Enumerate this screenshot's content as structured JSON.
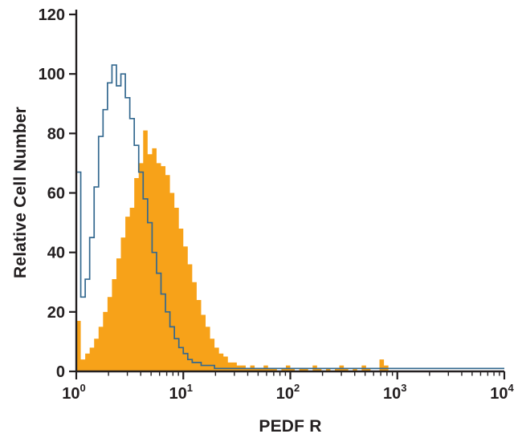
{
  "chart_data": {
    "type": "histogram",
    "title": "",
    "xlabel": "PEDF R",
    "ylabel": "Relative Cell Number",
    "x_scale": "log10",
    "xlim": [
      1,
      10000
    ],
    "ylim": [
      0,
      120
    ],
    "y_ticks": [
      0,
      20,
      40,
      60,
      80,
      100,
      120
    ],
    "x_tick_values": [
      1,
      10,
      100,
      1000,
      10000
    ],
    "x_tick_labels": [
      "10^0",
      "10^1",
      "10^2",
      "10^3",
      "10^4"
    ],
    "grid": false,
    "legend": "none",
    "bins": {
      "log10_start": 0,
      "log10_step": 0.0416667,
      "count": 96
    },
    "series": [
      {
        "name": "filled-orange-histogram",
        "style": "fill",
        "color": "#F7A219",
        "values": [
          17,
          4,
          6,
          8,
          11,
          15,
          20,
          25,
          31,
          38,
          45,
          52,
          55,
          65,
          70,
          81,
          73,
          75,
          70,
          69,
          66,
          60,
          55,
          48,
          42,
          36,
          30,
          24,
          19,
          15,
          11,
          8,
          6,
          5,
          3,
          3,
          2,
          2,
          1,
          2,
          1,
          1,
          2,
          1,
          1,
          0,
          1,
          2,
          1,
          0,
          1,
          1,
          0,
          2,
          1,
          0,
          1,
          0,
          1,
          2,
          1,
          0,
          1,
          0,
          2,
          1,
          0,
          0,
          4,
          2,
          0,
          0,
          0,
          0,
          0,
          0,
          0,
          0,
          0,
          0,
          0,
          0,
          0,
          0,
          0,
          0,
          0,
          0,
          0,
          0,
          0,
          0,
          0,
          0,
          0,
          0
        ]
      },
      {
        "name": "open-blue-histogram",
        "style": "line",
        "color": "#33688F",
        "values": [
          67,
          25,
          31,
          45,
          62,
          79,
          88,
          97,
          103,
          96,
          100,
          92,
          85,
          76,
          67,
          58,
          50,
          40,
          33,
          26,
          20,
          15,
          11,
          8,
          6,
          4,
          3,
          3,
          2,
          2,
          2,
          1,
          1,
          1,
          1,
          1,
          1,
          1,
          1,
          1,
          1,
          1,
          1,
          1,
          1,
          1,
          1,
          1,
          1,
          1,
          1,
          1,
          1,
          1,
          1,
          1,
          1,
          1,
          1,
          1,
          1,
          1,
          1,
          1,
          1,
          1,
          1,
          1,
          1,
          1,
          1,
          1,
          1,
          1,
          1,
          1,
          1,
          1,
          1,
          1,
          1,
          1,
          1,
          1,
          1,
          1,
          1,
          1,
          1,
          1,
          1,
          1,
          1,
          1,
          1,
          1
        ]
      }
    ]
  },
  "colors": {
    "axis": "#231f20",
    "background": "#ffffff"
  }
}
